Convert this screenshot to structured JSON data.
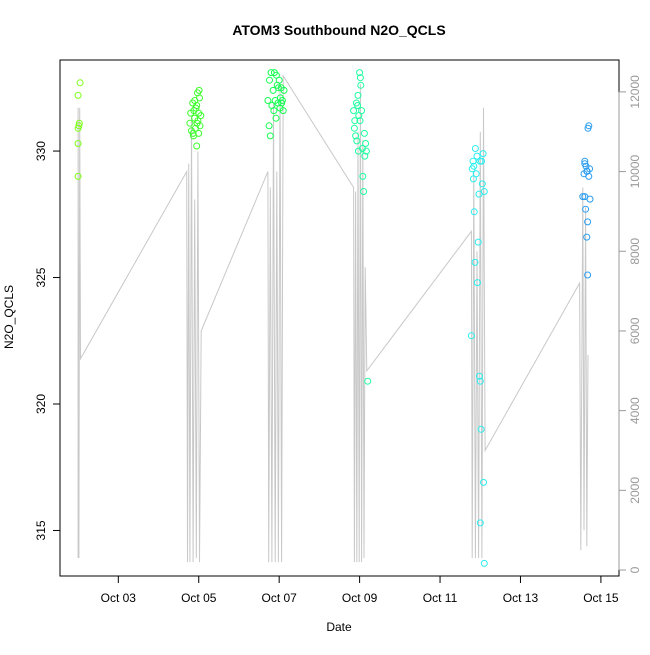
{
  "chart_data": {
    "type": "scatter",
    "title": "ATOM3 Southbound N2O_QCLS",
    "xlabel": "Date",
    "ylabel": "N2O_QCLS",
    "y2label": "",
    "x_ticks": [
      {
        "value": 3,
        "label": "Oct 03"
      },
      {
        "value": 5,
        "label": "Oct 05"
      },
      {
        "value": 7,
        "label": "Oct 07"
      },
      {
        "value": 9,
        "label": "Oct 09"
      },
      {
        "value": 11,
        "label": "Oct 11"
      },
      {
        "value": 13,
        "label": "Oct 13"
      },
      {
        "value": 15,
        "label": "Oct 15"
      }
    ],
    "y_ticks": [
      {
        "value": 315,
        "label": "315"
      },
      {
        "value": 320,
        "label": "320"
      },
      {
        "value": 325,
        "label": "325"
      },
      {
        "value": 330,
        "label": "330"
      }
    ],
    "y2_ticks": [
      {
        "value": 0,
        "label": "0"
      },
      {
        "value": 2000,
        "label": "2000"
      },
      {
        "value": 4000,
        "label": "4000"
      },
      {
        "value": 6000,
        "label": "6000"
      },
      {
        "value": 8000,
        "label": "8000"
      },
      {
        "value": 10000,
        "label": "10000"
      },
      {
        "value": 12000,
        "label": "12000"
      }
    ],
    "xlim": [
      1.55,
      15.45
    ],
    "ylim": [
      313.2,
      333.6
    ],
    "y2lim": [
      -150,
      12800
    ],
    "colors": {
      "altitude_line": "#c8c8c8",
      "right_axis": "#999999"
    },
    "series": [
      {
        "color": "#7fff1a",
        "points": [
          [
            2.0,
            332.2
          ],
          [
            2.0,
            330.9
          ],
          [
            2.02,
            331.0
          ],
          [
            2.03,
            331.1
          ],
          [
            2.0,
            330.3
          ],
          [
            2.0,
            329.0
          ],
          [
            2.05,
            332.7
          ]
        ]
      },
      {
        "color": "#3dff2c",
        "points": [
          [
            4.78,
            331.1
          ],
          [
            4.8,
            331.5
          ],
          [
            4.82,
            330.8
          ],
          [
            4.85,
            331.9
          ],
          [
            4.87,
            330.6
          ],
          [
            4.88,
            331.6
          ],
          [
            4.9,
            332.0
          ],
          [
            4.9,
            331.3
          ],
          [
            4.92,
            330.9
          ],
          [
            4.93,
            331.7
          ],
          [
            4.95,
            330.2
          ],
          [
            4.95,
            331.8
          ],
          [
            4.97,
            332.3
          ],
          [
            4.98,
            331.2
          ],
          [
            5.0,
            331.5
          ],
          [
            5.0,
            330.7
          ],
          [
            5.02,
            332.1
          ],
          [
            5.03,
            331.0
          ],
          [
            5.05,
            331.4
          ],
          [
            4.86,
            330.7
          ],
          [
            4.96,
            331.1
          ],
          [
            5.01,
            332.4
          ]
        ]
      },
      {
        "color": "#16ff52",
        "points": [
          [
            6.72,
            332.0
          ],
          [
            6.75,
            331.0
          ],
          [
            6.78,
            330.6
          ],
          [
            6.8,
            333.1
          ],
          [
            6.82,
            331.8
          ],
          [
            6.85,
            332.4
          ],
          [
            6.87,
            331.6
          ],
          [
            6.88,
            333.1
          ],
          [
            6.9,
            332.0
          ],
          [
            6.92,
            331.3
          ],
          [
            6.95,
            332.6
          ],
          [
            6.97,
            331.9
          ],
          [
            6.98,
            332.5
          ],
          [
            7.0,
            332.8
          ],
          [
            7.02,
            331.7
          ],
          [
            7.03,
            332.1
          ],
          [
            7.05,
            332.5
          ],
          [
            7.08,
            332.0
          ],
          [
            7.1,
            331.6
          ],
          [
            7.12,
            332.4
          ],
          [
            6.76,
            332.8
          ],
          [
            6.93,
            333.0
          ],
          [
            7.06,
            331.9
          ]
        ]
      },
      {
        "color": "#1effa0",
        "points": [
          [
            8.85,
            331.6
          ],
          [
            8.87,
            330.9
          ],
          [
            8.88,
            331.2
          ],
          [
            8.9,
            330.6
          ],
          [
            8.92,
            331.9
          ],
          [
            8.93,
            330.4
          ],
          [
            8.95,
            331.8
          ],
          [
            8.97,
            330.0
          ],
          [
            8.98,
            331.4
          ],
          [
            9.0,
            333.1
          ],
          [
            9.02,
            332.9
          ],
          [
            9.03,
            332.6
          ],
          [
            9.05,
            331.6
          ],
          [
            9.07,
            330.1
          ],
          [
            9.08,
            329.0
          ],
          [
            9.1,
            328.4
          ],
          [
            9.12,
            330.7
          ],
          [
            9.13,
            329.8
          ],
          [
            9.15,
            330.3
          ],
          [
            9.17,
            330.0
          ],
          [
            9.2,
            320.9
          ],
          [
            8.96,
            332.2
          ],
          [
            9.01,
            331.2
          ]
        ]
      },
      {
        "color": "#2ceef0",
        "points": [
          [
            11.78,
            322.7
          ],
          [
            11.8,
            329.3
          ],
          [
            11.82,
            329.6
          ],
          [
            11.83,
            328.9
          ],
          [
            11.85,
            327.6
          ],
          [
            11.87,
            325.6
          ],
          [
            11.88,
            330.1
          ],
          [
            11.9,
            329.1
          ],
          [
            11.92,
            329.8
          ],
          [
            11.93,
            324.8
          ],
          [
            11.95,
            326.4
          ],
          [
            11.97,
            328.3
          ],
          [
            11.98,
            321.1
          ],
          [
            12.0,
            320.9
          ],
          [
            12.0,
            315.3
          ],
          [
            12.02,
            319.0
          ],
          [
            12.03,
            329.6
          ],
          [
            12.05,
            328.7
          ],
          [
            12.07,
            329.9
          ],
          [
            12.08,
            316.9
          ],
          [
            12.1,
            328.4
          ],
          [
            12.1,
            313.7
          ],
          [
            11.84,
            329.4
          ],
          [
            11.99,
            329.6
          ]
        ]
      },
      {
        "color": "#2a9df0",
        "points": [
          [
            14.55,
            328.2
          ],
          [
            14.58,
            329.1
          ],
          [
            14.6,
            328.2
          ],
          [
            14.6,
            329.5
          ],
          [
            14.62,
            327.7
          ],
          [
            14.63,
            329.4
          ],
          [
            14.65,
            326.6
          ],
          [
            14.65,
            329.2
          ],
          [
            14.67,
            325.1
          ],
          [
            14.67,
            327.2
          ],
          [
            14.68,
            330.9
          ],
          [
            14.7,
            329.0
          ],
          [
            14.7,
            331.0
          ],
          [
            14.72,
            329.3
          ],
          [
            14.73,
            328.1
          ],
          [
            14.6,
            329.6
          ],
          [
            14.66,
            329.2
          ]
        ]
      }
    ],
    "altitude_line": [
      [
        2.0,
        300
      ],
      [
        2.0,
        11600
      ],
      [
        2.02,
        300
      ],
      [
        2.04,
        11600
      ],
      [
        2.06,
        5300
      ],
      [
        4.7,
        10000
      ],
      [
        4.72,
        200
      ],
      [
        4.75,
        10200
      ],
      [
        4.78,
        200
      ],
      [
        4.82,
        11400
      ],
      [
        4.86,
        200
      ],
      [
        4.9,
        9300
      ],
      [
        4.94,
        300
      ],
      [
        4.98,
        10500
      ],
      [
        5.02,
        200
      ],
      [
        5.06,
        6000
      ],
      [
        6.72,
        10000
      ],
      [
        6.74,
        200
      ],
      [
        6.78,
        9600
      ],
      [
        6.82,
        200
      ],
      [
        6.86,
        11700
      ],
      [
        6.9,
        200
      ],
      [
        6.94,
        10000
      ],
      [
        6.98,
        200
      ],
      [
        7.02,
        12200
      ],
      [
        7.06,
        200
      ],
      [
        7.1,
        12400
      ],
      [
        8.85,
        9600
      ],
      [
        8.87,
        200
      ],
      [
        8.9,
        9500
      ],
      [
        8.93,
        200
      ],
      [
        8.96,
        11000
      ],
      [
        8.99,
        200
      ],
      [
        9.02,
        12200
      ],
      [
        9.05,
        200
      ],
      [
        9.08,
        10800
      ],
      [
        9.11,
        300
      ],
      [
        9.14,
        7600
      ],
      [
        9.18,
        5000
      ],
      [
        11.78,
        8500
      ],
      [
        11.8,
        300
      ],
      [
        11.84,
        10000
      ],
      [
        11.88,
        300
      ],
      [
        11.92,
        8000
      ],
      [
        11.96,
        300
      ],
      [
        12.0,
        11000
      ],
      [
        12.04,
        300
      ],
      [
        12.08,
        11600
      ],
      [
        12.12,
        3000
      ],
      [
        14.47,
        7200
      ],
      [
        14.5,
        500
      ],
      [
        14.55,
        9600
      ],
      [
        14.58,
        1000
      ],
      [
        14.62,
        9100
      ],
      [
        14.65,
        600
      ],
      [
        14.68,
        5400
      ]
    ]
  }
}
